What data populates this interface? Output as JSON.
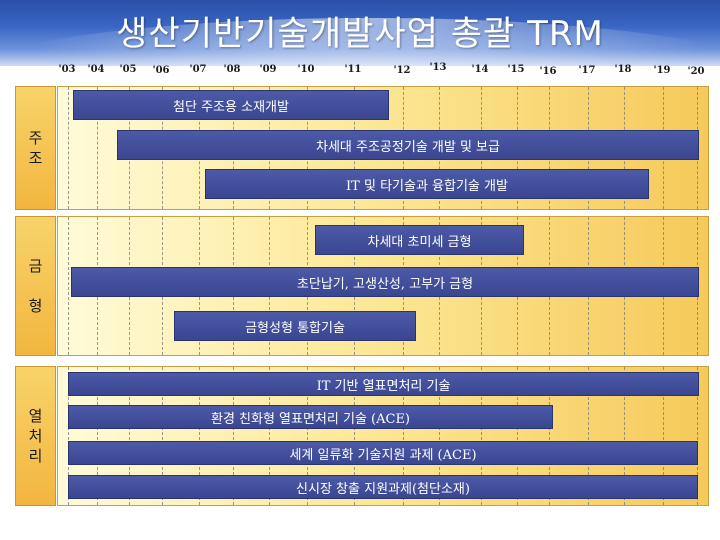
{
  "title": "생산기반기술개발사업 총괄 TRM",
  "years": [
    "'03",
    "'04",
    "'05",
    "'06",
    "'07",
    "'08",
    "'09",
    "'10",
    "'11",
    "'12",
    "'13",
    "'14",
    "'15",
    "'16",
    "'17",
    "'18",
    "'19",
    "'20"
  ],
  "rows": [
    {
      "label": "주\n조",
      "bars": [
        {
          "label": "첨단 주조용 소재개발",
          "start": "'03",
          "end": "'12"
        },
        {
          "label": "차세대 주조공정기술 개발 및 보급",
          "start": "'05",
          "end": "'20"
        },
        {
          "label": "IT 및 타기술과 융합기술 개발",
          "start": "'07",
          "end": "'19"
        }
      ]
    },
    {
      "label": "금\n\n형",
      "bars": [
        {
          "label": "차세대 초미세 금형",
          "start": "'10",
          "end": "'16"
        },
        {
          "label": "초단납기, 고생산성, 고부가 금형",
          "start": "'03",
          "end": "'20"
        },
        {
          "label": "금형성형 통합기술",
          "start": "'06",
          "end": "'13"
        }
      ]
    },
    {
      "label": "열\n처\n리",
      "bars": [
        {
          "label": "IT 기반 열표면처리 기술",
          "start": "'03",
          "end": "'20"
        },
        {
          "label": "환경 친화형 열표면처리 기술 (ACE)",
          "start": "'03",
          "end": "'16"
        },
        {
          "label": "세계 일류화 기술지원 과제 (ACE)",
          "start": "'03",
          "end": "'20"
        },
        {
          "label": "신시장 창출 지원과제(첨단소재)",
          "start": "'03",
          "end": "'20"
        }
      ]
    }
  ]
}
